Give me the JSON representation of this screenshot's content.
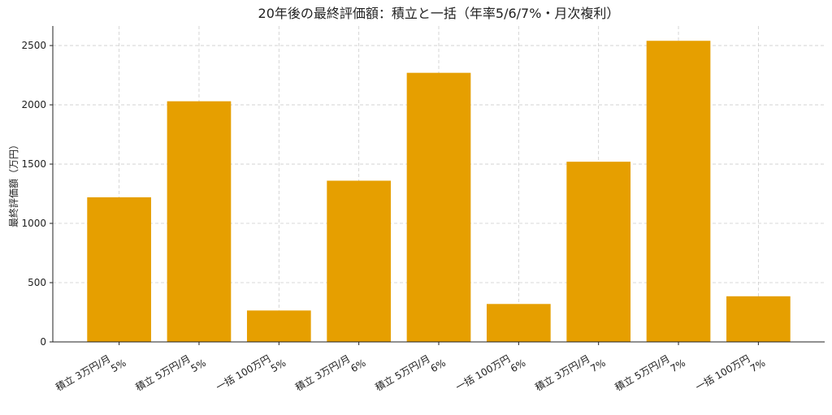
{
  "chart_data": {
    "type": "bar",
    "title": "20年後の最終評価額：積立と一括（年率5/6/7%・月次複利）",
    "y_label": "最終評価額（万円）",
    "categories": [
      [
        "積立 3万円/月",
        "5%"
      ],
      [
        "積立 5万円/月",
        "5%"
      ],
      [
        "一括 100万円",
        "5%"
      ],
      [
        "積立 3万円/月",
        "6%"
      ],
      [
        "積立 5万円/月",
        "6%"
      ],
      [
        "一括 100万円",
        "6%"
      ],
      [
        "積立 3万円/月",
        "7%"
      ],
      [
        "積立 5万円/月",
        "7%"
      ],
      [
        "一括 100万円",
        "7%"
      ]
    ],
    "values": [
      1220,
      2030,
      265,
      1360,
      2270,
      320,
      1520,
      2540,
      385
    ],
    "color": "#e69f00",
    "ylim": [
      0,
      2665
    ],
    "yticks": [
      0,
      500,
      1000,
      1500,
      2000,
      2500
    ],
    "grid": true
  }
}
